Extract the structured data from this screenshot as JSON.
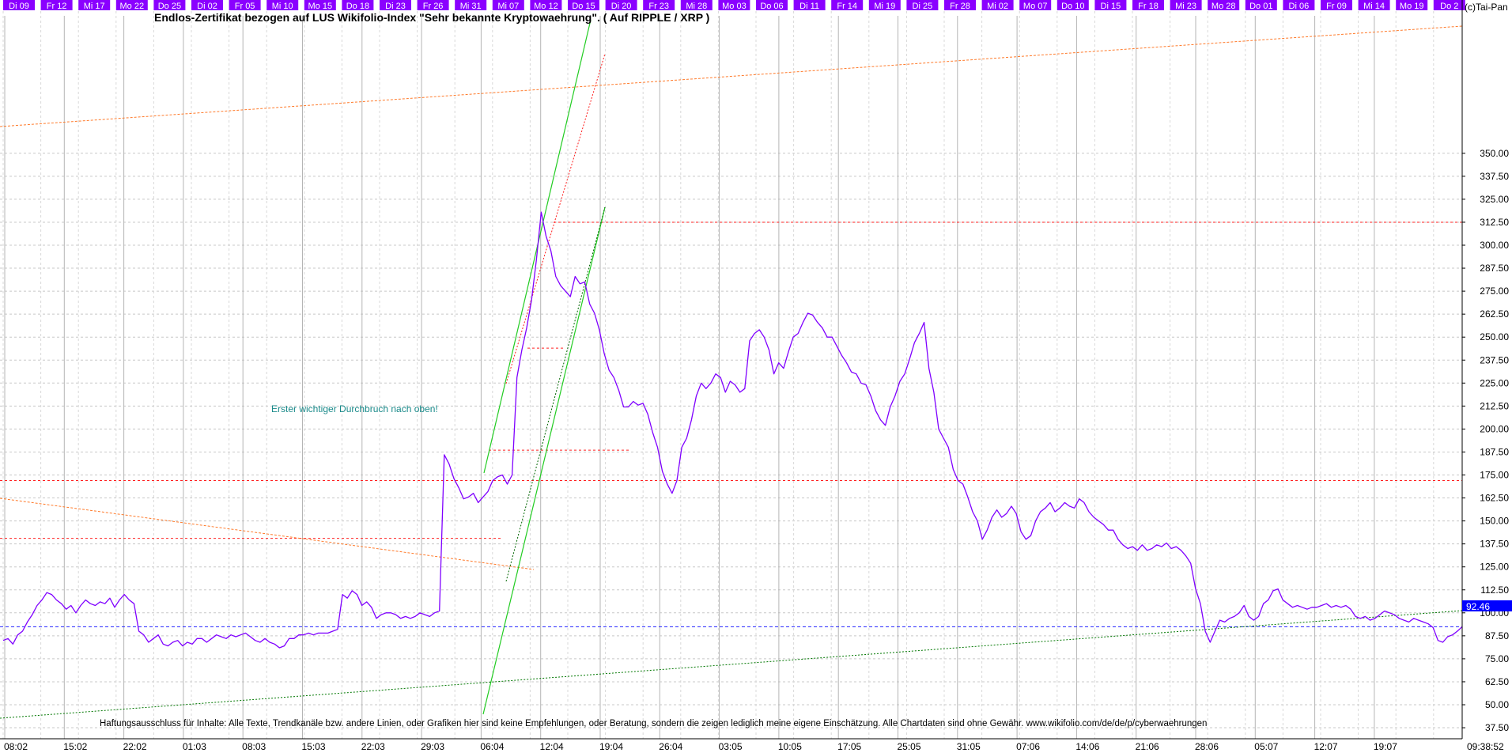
{
  "chart_data": {
    "type": "line",
    "title": "Endlos-Zertifikat bezogen auf LUS Wikifolio-Index \"Sehr bekannte Kryptowaehrung\". ( Auf RIPPLE / XRP )",
    "copyright": "(c)Tai-Pan",
    "annotation": "Erster wichtiger Durchbruch nach oben!",
    "disclaimer": "Haftungsausschluss für Inhalte: Alle Texte, Trendkanäle bzw. andere Linien, oder Grafiken hier sind keine Empfehlungen, oder Beratung, sondern die zeigen lediglich meine eigene Einschätzung. Alle Chartdaten sind ohne Gewähr.  www.wikifolio.com/de/de/p/cyberwaehrungen",
    "last_value": "92.46",
    "last_time": "09:38:52",
    "ylim": [
      37.5,
      350
    ],
    "yticks": [
      "37.50",
      "50.00",
      "62.50",
      "75.00",
      "87.50",
      "100.00",
      "112.50",
      "125.00",
      "137.50",
      "150.00",
      "162.50",
      "175.00",
      "187.50",
      "200.00",
      "212.50",
      "225.00",
      "237.50",
      "250.00",
      "262.50",
      "275.00",
      "287.50",
      "300.00",
      "312.50",
      "325.00",
      "337.50",
      "350.00"
    ],
    "top_ticks": [
      "Di 09",
      "Fr 12",
      "Mi 17",
      "Mo 22",
      "Do 25",
      "Di 02",
      "Fr 05",
      "Mi 10",
      "Mo 15",
      "Do 18",
      "Di 23",
      "Fr 26",
      "Mi 31",
      "Mi 07",
      "Mo 12",
      "Do 15",
      "Di 20",
      "Fr 23",
      "Mi 28",
      "Mo 03",
      "Do 06",
      "Di 11",
      "Fr 14",
      "Mi 19",
      "Di 25",
      "Fr 28",
      "Mi 02",
      "Mo 07",
      "Do 10",
      "Di 15",
      "Fr 18",
      "Mi 23",
      "Mo 28",
      "Do 01",
      "Di 06",
      "Fr 09",
      "Mi 14",
      "Mo 19",
      "Do 2"
    ],
    "bottom_ticks": [
      "08:02",
      "15:02",
      "22:02",
      "01:03",
      "08:03",
      "15:03",
      "22:03",
      "29:03",
      "06:04",
      "12:04",
      "19:04",
      "26:04",
      "03:05",
      "10:05",
      "17:05",
      "25:05",
      "31:05",
      "07:06",
      "14:06",
      "21:06",
      "28:06",
      "05:07",
      "12:07",
      "19:07"
    ],
    "series": [
      {
        "color": "#7f00ff",
        "values": [
          85,
          86,
          83,
          88,
          90,
          95,
          99,
          104,
          107,
          111,
          110,
          107,
          105,
          102,
          104,
          100,
          104,
          107,
          105,
          104,
          106,
          105,
          108,
          103,
          107,
          110,
          107,
          105,
          90,
          88,
          84,
          86,
          88,
          83,
          82,
          84,
          85,
          82,
          84,
          83,
          86,
          86,
          84,
          86,
          88,
          87,
          86,
          88,
          87,
          88,
          89,
          87,
          85,
          84,
          86,
          84,
          83,
          81,
          82,
          86,
          86,
          88,
          88,
          89,
          88,
          89,
          89,
          89,
          90,
          91,
          110,
          108,
          112,
          110,
          104,
          106,
          103,
          97,
          99,
          100,
          100,
          99,
          97,
          98,
          97,
          98,
          100,
          99,
          98,
          100,
          101,
          186,
          181,
          173,
          168,
          162,
          163,
          165,
          160,
          163,
          166,
          172,
          174,
          175,
          170,
          175,
          228,
          243,
          255,
          270,
          292,
          318,
          305,
          297,
          283,
          278,
          275,
          272,
          283,
          279,
          280,
          268,
          263,
          254,
          241,
          232,
          228,
          221,
          212,
          212,
          215,
          213,
          214,
          208,
          198,
          190,
          177,
          170,
          165,
          172,
          190,
          195,
          205,
          218,
          225,
          222,
          225,
          230,
          228,
          220,
          226,
          224,
          220,
          222,
          248,
          252,
          254,
          250,
          243,
          230,
          236,
          233,
          242,
          250,
          252,
          258,
          263,
          262,
          258,
          255,
          250,
          250,
          245,
          240,
          236,
          231,
          230,
          225,
          224,
          218,
          210,
          205,
          202,
          212,
          218,
          226,
          230,
          238,
          247,
          252,
          258,
          233,
          220,
          200,
          195,
          190,
          178,
          172,
          170,
          163,
          155,
          150,
          140,
          145,
          152,
          156,
          152,
          154,
          158,
          154,
          144,
          140,
          142,
          150,
          155,
          157,
          160,
          155,
          157,
          160,
          158,
          157,
          162,
          160,
          155,
          152,
          150,
          148,
          145,
          145,
          140,
          137,
          135,
          136,
          134,
          137,
          134,
          135,
          137,
          136,
          138,
          135,
          136,
          134,
          131,
          127,
          113,
          105,
          90,
          84,
          90,
          96,
          95,
          97,
          98,
          100,
          104,
          98,
          96,
          98,
          105,
          107,
          112,
          113,
          107,
          105,
          103,
          104,
          103,
          102,
          103,
          103,
          104,
          105,
          103,
          104,
          103,
          104,
          102,
          98,
          97,
          98,
          96,
          97,
          99,
          101,
          100,
          99,
          97,
          96,
          95,
          97,
          96,
          95,
          94,
          92,
          85,
          84,
          87,
          88,
          90,
          92.46
        ]
      }
    ],
    "hlines_red": [
      312.5,
      244,
      188.5,
      172,
      140.5
    ],
    "hline_last_blue": 92.46,
    "grid": true
  }
}
